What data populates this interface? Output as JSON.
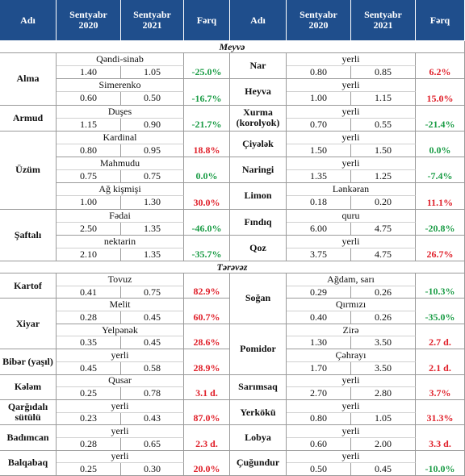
{
  "header": [
    "Adı",
    "Sentyabr 2020",
    "Sentyabr 2021",
    "Fərq",
    "Adı",
    "Sentyabr 2020",
    "Sentyabr 2021",
    "Fərq"
  ],
  "sections": [
    {
      "title": "Meyvə",
      "left": [
        {
          "name": "Alma",
          "items": [
            [
              "Qəndi-sinab",
              "1.40",
              "1.05",
              "-25.0%"
            ],
            [
              "Simerenko",
              "0.60",
              "0.50",
              "-16.7%"
            ]
          ]
        },
        {
          "name": "Armud",
          "items": [
            [
              "Duşes",
              "1.15",
              "0.90",
              "-21.7%"
            ]
          ]
        },
        {
          "name": "Üzüm",
          "items": [
            [
              "Kardinal",
              "0.80",
              "0.95",
              "18.8%"
            ],
            [
              "Mahmudu",
              "0.75",
              "0.75",
              "0.0%"
            ],
            [
              "Ağ kişmişi",
              "1.00",
              "1.30",
              "30.0%"
            ]
          ]
        },
        {
          "name": "Şaftalı",
          "items": [
            [
              "Fədai",
              "2.50",
              "1.35",
              "-46.0%"
            ],
            [
              "nektarin",
              "2.10",
              "1.35",
              "-35.7%"
            ]
          ]
        }
      ],
      "right": [
        {
          "name": "Nar",
          "items": [
            [
              "yerli",
              "0.80",
              "0.85",
              "6.2%"
            ]
          ]
        },
        {
          "name": "Heyva",
          "items": [
            [
              "yerli",
              "1.00",
              "1.15",
              "15.0%"
            ]
          ]
        },
        {
          "name": "Xurma (korolyok)",
          "items": [
            [
              "yerli",
              "0.70",
              "0.55",
              "-21.4%"
            ]
          ]
        },
        {
          "name": "Çiyələk",
          "items": [
            [
              "yerli",
              "1.50",
              "1.50",
              "0.0%"
            ]
          ]
        },
        {
          "name": "Naringi",
          "items": [
            [
              "yerli",
              "1.35",
              "1.25",
              "-7.4%"
            ]
          ]
        },
        {
          "name": "Limon",
          "items": [
            [
              "Lənkəran",
              "0.18",
              "0.20",
              "11.1%"
            ]
          ]
        },
        {
          "name": "Fındıq",
          "items": [
            [
              "quru",
              "6.00",
              "4.75",
              "-20.8%"
            ]
          ]
        },
        {
          "name": "Qoz",
          "items": [
            [
              "yerli",
              "3.75",
              "4.75",
              "26.7%"
            ]
          ]
        }
      ]
    },
    {
      "title": "Tərəvəz",
      "left": [
        {
          "name": "Kartof",
          "items": [
            [
              "Tovuz",
              "0.41",
              "0.75",
              "82.9%"
            ]
          ]
        },
        {
          "name": "Xiyar",
          "items": [
            [
              "Melit",
              "0.28",
              "0.45",
              "60.7%"
            ],
            [
              "Yelpənək",
              "0.35",
              "0.45",
              "28.6%"
            ]
          ]
        },
        {
          "name": "Bibər (yaşıl)",
          "items": [
            [
              "yerli",
              "0.45",
              "0.58",
              "28.9%"
            ]
          ]
        },
        {
          "name": "Kələm",
          "items": [
            [
              "Qusar",
              "0.25",
              "0.78",
              "3.1 d."
            ]
          ]
        },
        {
          "name": "Qarğıdalı sütülü",
          "items": [
            [
              "yerli",
              "0.23",
              "0.43",
              "87.0%"
            ]
          ]
        },
        {
          "name": "Badımcan",
          "items": [
            [
              "yerli",
              "0.28",
              "0.65",
              "2.3 d."
            ]
          ]
        },
        {
          "name": "Balqabaq",
          "items": [
            [
              "yerli",
              "0.25",
              "0.30",
              "20.0%"
            ]
          ]
        }
      ],
      "right": [
        {
          "name": "Soğan",
          "items": [
            [
              "Ağdam, sarı",
              "0.29",
              "0.26",
              "-10.3%"
            ],
            [
              "Qırmızı",
              "0.40",
              "0.26",
              "-35.0%"
            ]
          ]
        },
        {
          "name": "Pomidor",
          "items": [
            [
              "Zirə",
              "1.30",
              "3.50",
              "2.7 d."
            ],
            [
              "Çəhrayı",
              "1.70",
              "3.50",
              "2.1 d."
            ]
          ]
        },
        {
          "name": "Sarımsaq",
          "items": [
            [
              "yerli",
              "2.70",
              "2.80",
              "3.7%"
            ]
          ]
        },
        {
          "name": "Yerkökü",
          "items": [
            [
              "yerli",
              "0.80",
              "1.05",
              "31.3%"
            ]
          ]
        },
        {
          "name": "Lobya",
          "items": [
            [
              "yerli",
              "0.60",
              "2.00",
              "3.3 d."
            ]
          ]
        },
        {
          "name": "Çuğundur",
          "items": [
            [
              "yerli",
              "0.50",
              "0.45",
              "-10.0%"
            ]
          ]
        }
      ]
    }
  ]
}
